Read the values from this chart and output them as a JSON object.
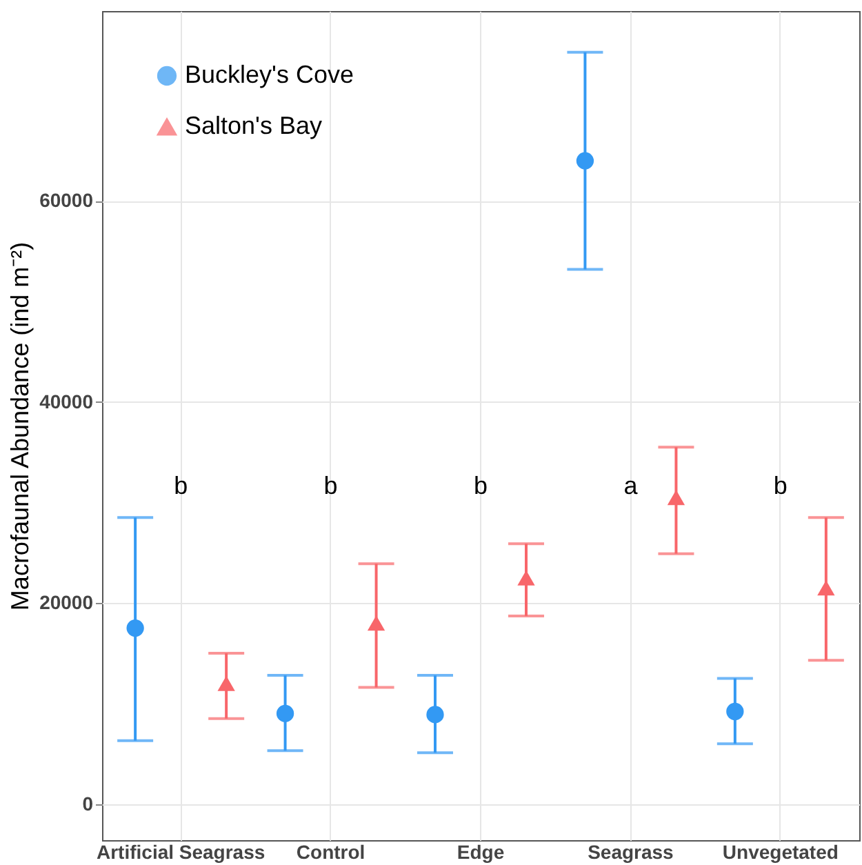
{
  "chart_data": {
    "type": "scatter",
    "ylabel": "Macrofaunal Abundance (ind m⁻²)",
    "categories": [
      "Artificial Seagrass",
      "Control",
      "Edge",
      "Seagrass",
      "Unvegetated"
    ],
    "ylim": [
      -3600,
      78900
    ],
    "yticks": [
      0,
      20000,
      40000,
      60000
    ],
    "grid": true,
    "legend": "top left",
    "series": [
      {
        "name": "Buckley's Cove",
        "color": "#3399f3",
        "marker": "circle",
        "values": [
          17500,
          9000,
          8900,
          64000,
          9200
        ],
        "errors": [
          [
            6300,
            28500
          ],
          [
            5300,
            12800
          ],
          [
            5100,
            12800
          ],
          [
            53200,
            74800
          ],
          [
            6000,
            12500
          ]
        ]
      },
      {
        "name": "Salton's Bay",
        "color": "#f8666a",
        "marker": "triangle",
        "values": [
          12000,
          18000,
          22500,
          30500,
          21500
        ],
        "errors": [
          [
            8500,
            15000
          ],
          [
            11600,
            23900
          ],
          [
            18700,
            25900
          ],
          [
            24900,
            35500
          ],
          [
            14300,
            28500
          ]
        ]
      }
    ],
    "annotations": [
      "b",
      "b",
      "b",
      "a",
      "b"
    ]
  }
}
